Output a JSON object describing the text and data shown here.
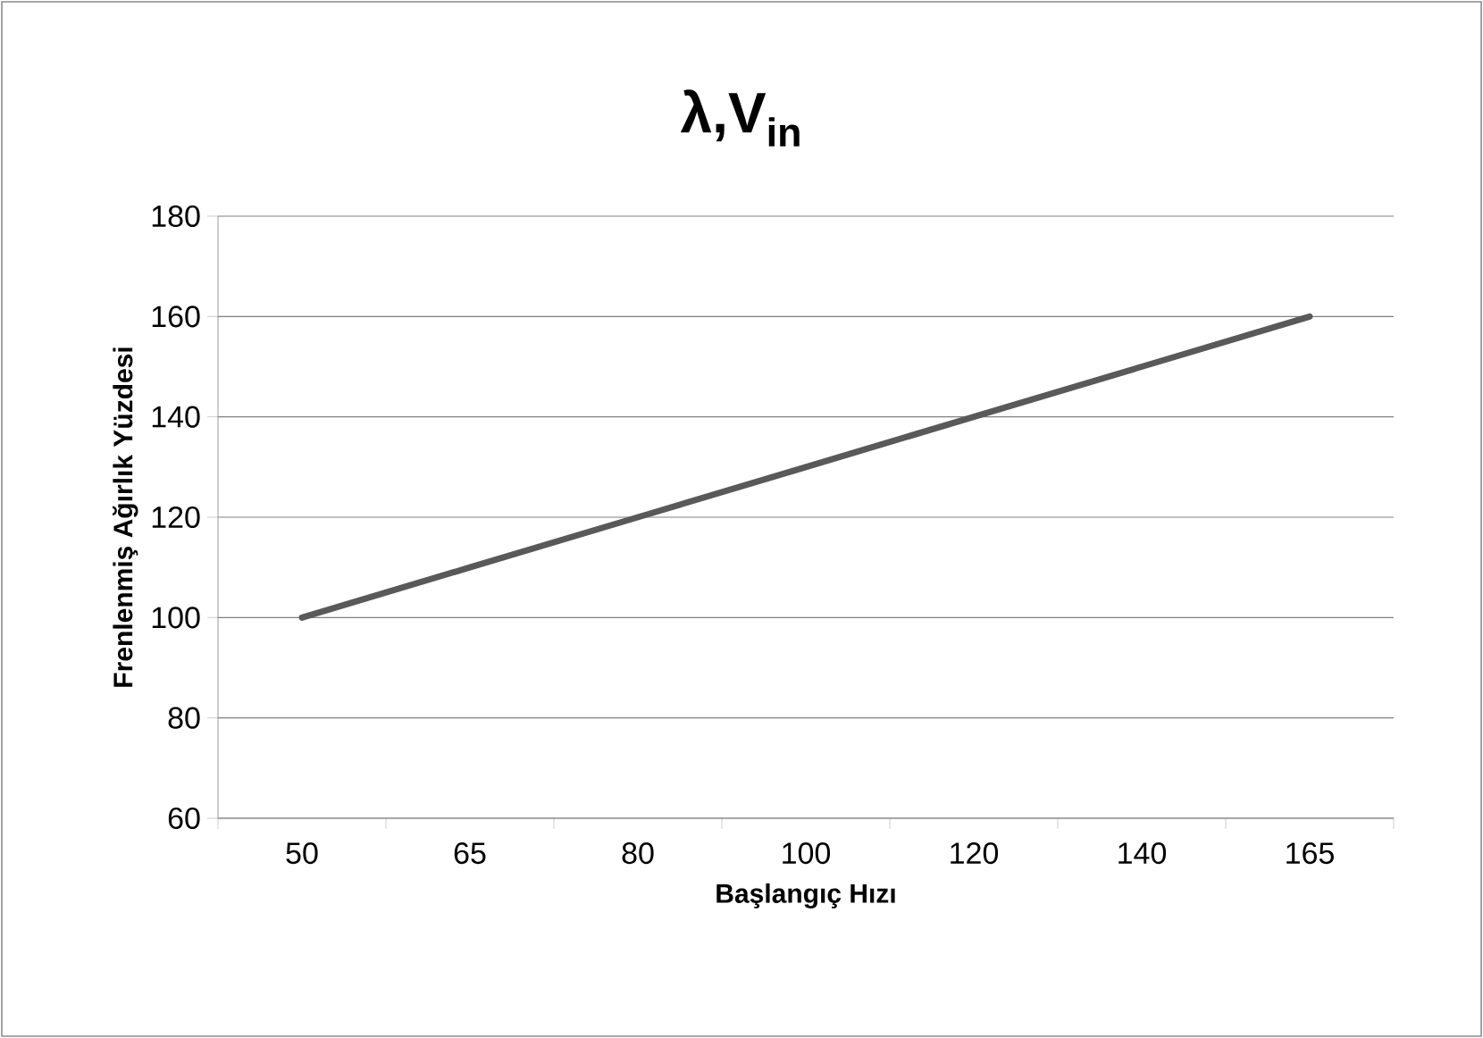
{
  "chart_data": {
    "type": "line",
    "title": "λ,V$_{in}$",
    "xlabel": "Başlangıç Hızı",
    "ylabel": "Frenlenmiş Ağırlık Yüzdesi",
    "categories": [
      "50",
      "65",
      "80",
      "100",
      "120",
      "140",
      "165"
    ],
    "series": [
      {
        "color": "#595959",
        "values": [
          100,
          110,
          120,
          130,
          140,
          150,
          160
        ]
      }
    ],
    "ylim": [
      60,
      180
    ],
    "yticks": [
      60,
      80,
      100,
      120,
      140,
      160,
      180
    ],
    "grid": "y"
  }
}
